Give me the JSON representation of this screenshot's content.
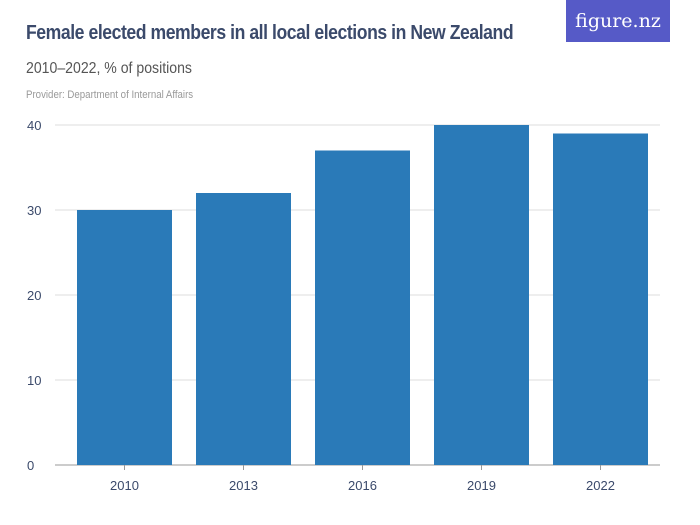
{
  "header": {
    "title": "Female elected members in all local elections in New Zealand",
    "subtitle": "2010–2022, % of positions",
    "provider": "Provider: Department of Internal Affairs",
    "logo": "figure.nz"
  },
  "colors": {
    "bar": "#2a7ab8",
    "logo_bg": "#565ac7",
    "title": "#3b4a6b"
  },
  "chart_data": {
    "type": "bar",
    "title": "Female elected members in all local elections in New Zealand",
    "subtitle": "2010–2022, % of positions",
    "categories": [
      "2010",
      "2013",
      "2016",
      "2019",
      "2022"
    ],
    "values": [
      30,
      32,
      37,
      40,
      39
    ],
    "ylim": [
      0,
      40
    ],
    "yticks": [
      "0",
      "10",
      "20",
      "30",
      "40"
    ],
    "xlabel": "",
    "ylabel": "",
    "grid": true,
    "legend": "none"
  }
}
